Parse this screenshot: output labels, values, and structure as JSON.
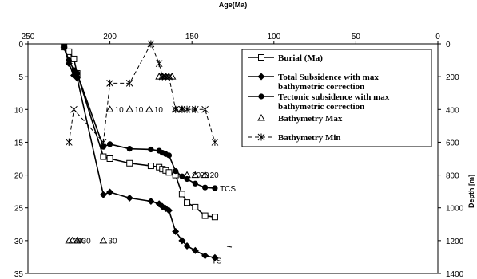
{
  "chart_data": {
    "type": "line",
    "x_axis": {
      "label": "Age(Ma)",
      "range": [
        250,
        0
      ],
      "reversed": true,
      "position": "top",
      "ticks": [
        250,
        200,
        150,
        100,
        50,
        0
      ]
    },
    "y_axis_left": {
      "label": "",
      "range": [
        0,
        35
      ],
      "reversed": true,
      "ticks": [
        0,
        5,
        10,
        15,
        20,
        25,
        30,
        35
      ]
    },
    "y_axis_right": {
      "label": "Depth [m]",
      "range": [
        0,
        1400
      ],
      "reversed": true,
      "ticks": [
        0,
        200,
        400,
        600,
        800,
        1000,
        1200,
        1400
      ]
    },
    "series": [
      {
        "name": "Burial (Ma)",
        "marker": "open-square",
        "axis": "left",
        "x": [
          228,
          225,
          222,
          220,
          204,
          200,
          188,
          175,
          170,
          168,
          166,
          164,
          160,
          156,
          153,
          148,
          142,
          136
        ],
        "y": [
          0.5,
          1.2,
          2.3,
          4.5,
          17.2,
          17.5,
          18.2,
          18.6,
          18.8,
          19.1,
          19.3,
          19.6,
          20.0,
          22.9,
          24.2,
          24.9,
          26.2,
          26.4
        ]
      },
      {
        "name": "Total Subsidence with max bathymetric correction",
        "marker": "filled-diamond",
        "axis": "left",
        "x": [
          228,
          225,
          222,
          220,
          204,
          200,
          188,
          175,
          170,
          168,
          166,
          164,
          160,
          156,
          153,
          148,
          142,
          136
        ],
        "y": [
          0.5,
          3.0,
          4.8,
          5.2,
          23.0,
          22.6,
          23.5,
          24.0,
          24.4,
          24.8,
          25.1,
          25.4,
          28.6,
          30.0,
          30.8,
          31.5,
          32.3,
          32.6
        ]
      },
      {
        "name": "Tectonic subsidence with max bathymetric correction",
        "marker": "filled-circle",
        "axis": "left",
        "x": [
          228,
          225,
          222,
          220,
          204,
          200,
          188,
          175,
          170,
          168,
          166,
          164,
          160,
          156,
          153,
          148,
          142,
          136
        ],
        "y": [
          0.5,
          2.5,
          4.0,
          4.5,
          15.7,
          15.3,
          16.0,
          16.1,
          16.3,
          16.6,
          16.8,
          17.0,
          19.4,
          20.2,
          20.6,
          21.3,
          21.9,
          22.0
        ]
      },
      {
        "name": "Bathymetry Max",
        "marker": "open-triangle",
        "axis": "left",
        "x": [
          225,
          223,
          220,
          204,
          200,
          188,
          176,
          170,
          168,
          166,
          164,
          162,
          160,
          156,
          153,
          148,
          142
        ],
        "y": [
          30,
          30,
          30,
          30,
          10,
          10,
          10,
          5,
          5,
          5,
          5,
          5,
          10,
          10,
          20,
          20,
          20
        ],
        "labels": [
          "30",
          "30",
          "30",
          "30",
          "10",
          "10",
          "10",
          "",
          "",
          "",
          "",
          "",
          "",
          "10",
          "20",
          "20",
          "20"
        ]
      },
      {
        "name": "Bathymetry Min",
        "marker": "asterisk",
        "line": "dashed",
        "axis": "left",
        "x": [
          225,
          222,
          204,
          200,
          188,
          175,
          170,
          168,
          166,
          164,
          160,
          156,
          153,
          148,
          142,
          136
        ],
        "y": [
          15,
          10,
          15,
          6,
          6,
          0,
          3,
          5,
          5,
          5,
          10,
          10,
          10,
          10,
          10,
          15
        ]
      }
    ],
    "annotations": [
      {
        "text": "TCS",
        "x": 133,
        "y": 22
      },
      {
        "text": "TS",
        "x": 138,
        "y": 33
      }
    ],
    "legend": {
      "placement": "top-right"
    },
    "grid": false
  },
  "colors": {
    "line": "#000000",
    "background": "#ffffff"
  }
}
